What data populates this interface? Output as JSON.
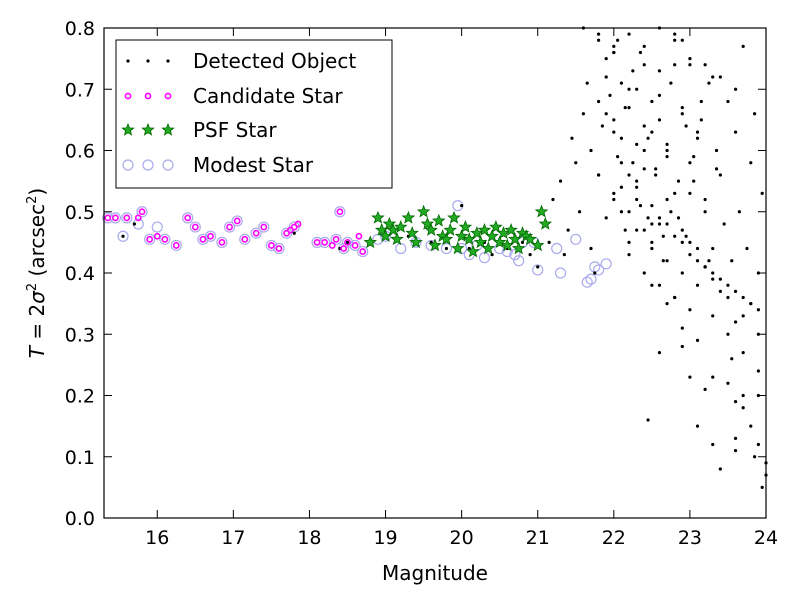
{
  "chart_data": {
    "type": "scatter",
    "xlabel": "Magnitude",
    "ylabel_parts": {
      "prefix": "T",
      "eq": " = 2",
      "sigma": "σ",
      "sq": "2",
      "unit": " (arcsec",
      "unit_sq": "2",
      "close": ")"
    },
    "xlim": [
      15.3,
      24.0
    ],
    "ylim": [
      0.0,
      0.8
    ],
    "x_ticks": [
      16,
      17,
      18,
      19,
      20,
      21,
      22,
      23,
      24
    ],
    "y_ticks": [
      0.0,
      0.1,
      0.2,
      0.3,
      0.4,
      0.5,
      0.6,
      0.7,
      0.8
    ],
    "y_tick_labels": [
      "0.0",
      "0.1",
      "0.2",
      "0.3",
      "0.4",
      "0.5",
      "0.6",
      "0.7",
      "0.8"
    ],
    "legend_position": "top-left",
    "colors": {
      "detected": "#000000",
      "candidate": "#ff00ff",
      "psf_fill": "#22aa22",
      "psf_edge": "#006600",
      "modest": "#aaaaee"
    },
    "series": [
      {
        "name": "Detected Object",
        "marker": "dot",
        "x": [
          15.55,
          15.7,
          17.8,
          18.4,
          18.5,
          19.3,
          19.6,
          19.8,
          20.0,
          20.1,
          20.3,
          20.4,
          20.5,
          20.6,
          20.7,
          20.8,
          20.9,
          21.0,
          21.05,
          21.1,
          21.15,
          21.2,
          21.3,
          21.35,
          21.4,
          21.45,
          21.5,
          21.55,
          21.6,
          21.65,
          21.7,
          21.75,
          21.8,
          21.85,
          21.9,
          21.95,
          22.0,
          22.05,
          22.1,
          22.15,
          22.2,
          22.25,
          22.3,
          22.35,
          22.4,
          22.45,
          22.5,
          22.55,
          22.6,
          22.65,
          22.7,
          22.75,
          22.8,
          22.85,
          22.9,
          22.95,
          23.0,
          23.05,
          23.1,
          23.15,
          23.2,
          23.25,
          23.3,
          23.35,
          23.4,
          23.45,
          23.5,
          23.55,
          23.6,
          23.65,
          23.7,
          23.75,
          23.8,
          23.85,
          23.9,
          23.95,
          22.0,
          22.1,
          22.2,
          22.3,
          22.4,
          22.5,
          22.6,
          22.7,
          22.8,
          22.9,
          23.0,
          23.1,
          23.2,
          23.3,
          22.05,
          22.15,
          22.25,
          22.35,
          22.45,
          22.55,
          22.65,
          22.75,
          22.85,
          22.95,
          23.05,
          23.15,
          23.25,
          23.35,
          21.9,
          22.0,
          22.1,
          22.2,
          22.3,
          22.4,
          22.5,
          22.6,
          22.7,
          22.8,
          22.9,
          23.0,
          23.1,
          23.2,
          21.7,
          21.8,
          21.9,
          22.0,
          22.1,
          22.2,
          22.3,
          22.4,
          22.5,
          22.6,
          22.7,
          22.8,
          22.9,
          23.0,
          22.5,
          22.7,
          22.9,
          23.1,
          23.3,
          23.5,
          23.7,
          23.9,
          22.2,
          22.4,
          22.6,
          22.8,
          23.0,
          23.2,
          23.4,
          23.6,
          23.8,
          22.3,
          22.5,
          22.7,
          22.9,
          23.1,
          23.3,
          23.5,
          23.7,
          23.9,
          21.8,
          22.0,
          22.2,
          22.4,
          22.6,
          22.8,
          23.0,
          23.2,
          23.4,
          23.6,
          23.8,
          21.6,
          21.8,
          22.0,
          22.2,
          22.4,
          22.6,
          22.8,
          23.0,
          23.2,
          23.4,
          23.6,
          22.1,
          22.3,
          22.5,
          22.7,
          22.9,
          23.1,
          23.3,
          23.5,
          23.7,
          23.9,
          23.5,
          23.6,
          23.7,
          23.8,
          23.9,
          24.0,
          22.45,
          23.3,
          23.4,
          23.6,
          23.85,
          23.95,
          24.0,
          23.2,
          23.55,
          23.7,
          22.0,
          21.9,
          21.8,
          22.6,
          22.9,
          23.0,
          23.1,
          23.6,
          23.9,
          23.3
        ],
        "y": [
          0.46,
          0.48,
          0.465,
          0.44,
          0.45,
          0.46,
          0.45,
          0.44,
          0.51,
          0.44,
          0.45,
          0.43,
          0.45,
          0.44,
          0.46,
          0.45,
          0.43,
          0.41,
          0.5,
          0.48,
          0.45,
          0.52,
          0.55,
          0.43,
          0.47,
          0.62,
          0.58,
          0.5,
          0.66,
          0.71,
          0.44,
          0.4,
          0.56,
          0.64,
          0.75,
          0.69,
          0.53,
          0.78,
          0.62,
          0.47,
          0.7,
          0.58,
          0.52,
          0.76,
          0.64,
          0.49,
          0.68,
          0.56,
          0.73,
          0.42,
          0.61,
          0.5,
          0.79,
          0.55,
          0.67,
          0.46,
          0.74,
          0.59,
          0.38,
          0.65,
          0.52,
          0.71,
          0.44,
          0.6,
          0.56,
          0.48,
          0.68,
          0.42,
          0.63,
          0.5,
          0.77,
          0.44,
          0.58,
          0.66,
          0.4,
          0.53,
          0.65,
          0.71,
          0.56,
          0.61,
          0.74,
          0.48,
          0.69,
          0.6,
          0.53,
          0.78,
          0.45,
          0.63,
          0.5,
          0.72,
          0.59,
          0.67,
          0.73,
          0.51,
          0.62,
          0.57,
          0.46,
          0.71,
          0.49,
          0.64,
          0.55,
          0.68,
          0.42,
          0.57,
          0.72,
          0.63,
          0.5,
          0.67,
          0.55,
          0.6,
          0.44,
          0.65,
          0.52,
          0.74,
          0.47,
          0.58,
          0.62,
          0.41,
          0.6,
          0.68,
          0.49,
          0.76,
          0.54,
          0.45,
          0.7,
          0.57,
          0.63,
          0.48,
          0.59,
          0.36,
          0.66,
          0.53,
          0.38,
          0.35,
          0.31,
          0.29,
          0.33,
          0.3,
          0.27,
          0.24,
          0.43,
          0.4,
          0.38,
          0.36,
          0.34,
          0.41,
          0.37,
          0.32,
          0.35,
          0.47,
          0.45,
          0.42,
          0.4,
          0.44,
          0.39,
          0.36,
          0.33,
          0.3,
          0.56,
          0.52,
          0.5,
          0.47,
          0.49,
          0.46,
          0.43,
          0.41,
          0.39,
          0.37,
          0.35,
          0.8,
          0.78,
          0.76,
          0.79,
          0.77,
          0.8,
          0.78,
          0.75,
          0.74,
          0.72,
          0.7,
          0.58,
          0.54,
          0.51,
          0.48,
          0.45,
          0.42,
          0.4,
          0.38,
          0.36,
          0.34,
          0.22,
          0.19,
          0.18,
          0.15,
          0.12,
          0.09,
          0.16,
          0.23,
          0.08,
          0.13,
          0.1,
          0.05,
          0.07,
          0.21,
          0.26,
          0.2,
          0.77,
          0.66,
          0.79,
          0.27,
          0.28,
          0.23,
          0.15,
          0.11,
          0.2,
          0.12
        ]
      },
      {
        "name": "Candidate Star",
        "marker": "ring",
        "x": [
          15.35,
          15.45,
          15.6,
          15.75,
          15.8,
          15.9,
          16.0,
          16.1,
          16.25,
          16.4,
          16.5,
          16.6,
          16.7,
          16.85,
          16.95,
          17.05,
          17.15,
          17.3,
          17.4,
          17.5,
          17.6,
          17.7,
          17.75,
          17.8,
          17.85,
          18.1,
          18.2,
          18.3,
          18.35,
          18.4,
          18.45,
          18.5,
          18.6,
          18.65,
          18.7,
          18.8
        ],
        "y": [
          0.49,
          0.49,
          0.49,
          0.49,
          0.5,
          0.455,
          0.46,
          0.455,
          0.445,
          0.49,
          0.475,
          0.455,
          0.46,
          0.45,
          0.475,
          0.485,
          0.455,
          0.465,
          0.475,
          0.445,
          0.44,
          0.465,
          0.47,
          0.475,
          0.48,
          0.45,
          0.45,
          0.445,
          0.455,
          0.5,
          0.44,
          0.45,
          0.445,
          0.46,
          0.435,
          0.45
        ]
      },
      {
        "name": "PSF Star",
        "marker": "star",
        "x": [
          18.8,
          18.9,
          18.95,
          19.0,
          19.05,
          19.1,
          19.15,
          19.2,
          19.3,
          19.35,
          19.4,
          19.5,
          19.55,
          19.6,
          19.65,
          19.7,
          19.75,
          19.8,
          19.85,
          19.9,
          19.95,
          20.0,
          20.05,
          20.1,
          20.15,
          20.2,
          20.25,
          20.3,
          20.35,
          20.4,
          20.45,
          20.5,
          20.55,
          20.6,
          20.65,
          20.7,
          20.75,
          20.8,
          20.85,
          20.9,
          21.0,
          21.05,
          21.1
        ],
        "y": [
          0.45,
          0.49,
          0.47,
          0.46,
          0.48,
          0.47,
          0.455,
          0.475,
          0.49,
          0.465,
          0.45,
          0.5,
          0.48,
          0.47,
          0.445,
          0.485,
          0.46,
          0.455,
          0.47,
          0.49,
          0.44,
          0.46,
          0.475,
          0.455,
          0.435,
          0.465,
          0.45,
          0.47,
          0.44,
          0.46,
          0.475,
          0.45,
          0.465,
          0.445,
          0.47,
          0.455,
          0.44,
          0.465,
          0.46,
          0.455,
          0.445,
          0.5,
          0.48
        ]
      },
      {
        "name": "Modest Star",
        "marker": "open-circle",
        "x": [
          15.35,
          15.45,
          15.55,
          15.6,
          15.75,
          15.8,
          15.9,
          16.0,
          16.1,
          16.25,
          16.4,
          16.5,
          16.6,
          16.7,
          16.85,
          16.95,
          17.05,
          17.15,
          17.3,
          17.4,
          17.5,
          17.6,
          17.7,
          17.8,
          18.1,
          18.2,
          18.35,
          18.4,
          18.45,
          18.5,
          18.6,
          18.7,
          18.9,
          19.0,
          19.2,
          19.4,
          19.6,
          19.8,
          19.95,
          20.0,
          20.1,
          20.2,
          20.3,
          20.5,
          20.6,
          20.7,
          20.75,
          20.8,
          20.95,
          21.0,
          21.25,
          21.3,
          21.5,
          21.65,
          21.7,
          21.75,
          21.8,
          21.9
        ],
        "y": [
          0.49,
          0.49,
          0.46,
          0.49,
          0.48,
          0.5,
          0.455,
          0.475,
          0.455,
          0.445,
          0.49,
          0.475,
          0.455,
          0.46,
          0.45,
          0.475,
          0.485,
          0.455,
          0.465,
          0.475,
          0.445,
          0.44,
          0.465,
          0.475,
          0.45,
          0.45,
          0.455,
          0.5,
          0.44,
          0.45,
          0.445,
          0.435,
          0.455,
          0.46,
          0.44,
          0.45,
          0.445,
          0.44,
          0.51,
          0.44,
          0.43,
          0.445,
          0.425,
          0.44,
          0.435,
          0.43,
          0.42,
          0.45,
          0.45,
          0.405,
          0.44,
          0.4,
          0.455,
          0.385,
          0.39,
          0.41,
          0.405,
          0.415
        ]
      }
    ]
  }
}
